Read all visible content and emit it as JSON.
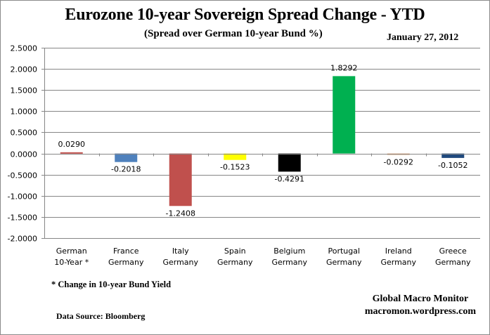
{
  "chart_data": {
    "type": "bar",
    "title": "Eurozone 10-year Sovereign Spread Change - YTD",
    "subtitle": "(Spread over German 10-year Bund %)",
    "date": "January 27,  2012",
    "xlabel": "",
    "ylabel": "",
    "ylim": [
      -2.0,
      2.5
    ],
    "ytick_step": 0.5,
    "ytick_labels": [
      "2.5000",
      "2.0000",
      "1.5000",
      "1.0000",
      "0.5000",
      "0.0000",
      "-0.5000",
      "-1.0000",
      "-1.5000",
      "-2.0000"
    ],
    "grid": true,
    "legend": "none",
    "categories": [
      [
        "German",
        "10-Year *"
      ],
      [
        "France",
        "Germany"
      ],
      [
        "Italy",
        "Germany"
      ],
      [
        "Spain",
        "Germany"
      ],
      [
        "Belgium",
        "Germany"
      ],
      [
        "Portugal",
        "Germany"
      ],
      [
        "Ireland",
        "Germany"
      ],
      [
        "Greece",
        "Germany"
      ]
    ],
    "values": [
      0.029,
      -0.2018,
      -1.2408,
      -0.1523,
      -0.4291,
      1.8292,
      -0.0292,
      -0.1052
    ],
    "data_labels": [
      "0.0290",
      "-0.2018",
      "-1.2408",
      "-0.1523",
      "-0.4291",
      "1.8292",
      "-0.0292",
      "-0.1052"
    ],
    "colors": [
      "#c0504d",
      "#4f81bd",
      "#c0504d",
      "#ffff00",
      "#000000",
      "#00b050",
      "#e6a878",
      "#1f497d"
    ]
  },
  "notes": {
    "footnote": "* Change in 10-year Bund Yield",
    "source": "Data Source:  Bloomberg",
    "brand_name": "Global Macro Monitor",
    "brand_url": "macromon.wordpress.com"
  }
}
